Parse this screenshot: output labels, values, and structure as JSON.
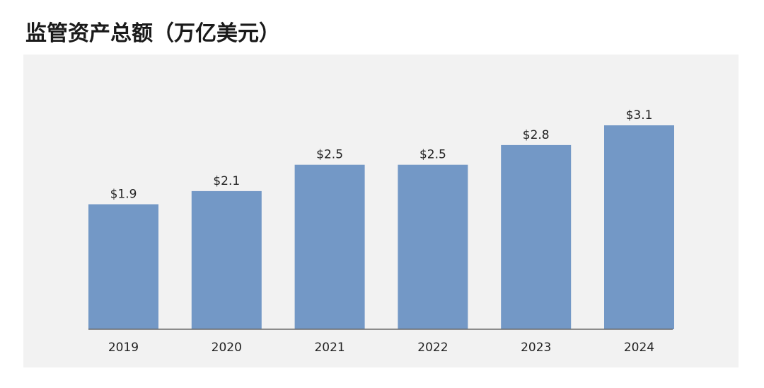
{
  "title": "监管资产总额（万亿美元）",
  "chart_data": {
    "type": "bar",
    "title": "监管资产总额（万亿美元）",
    "categories": [
      "2019",
      "2020",
      "2021",
      "2022",
      "2023",
      "2024"
    ],
    "values": [
      1.9,
      2.1,
      2.5,
      2.5,
      2.8,
      3.1
    ],
    "value_labels": [
      "$1.9",
      "$2.1",
      "$2.5",
      "$2.5",
      "$2.8",
      "$3.1"
    ],
    "xlabel": "",
    "ylabel": "",
    "ylim": [
      0,
      3.1
    ],
    "grid": false,
    "legend": "none",
    "bar_color": "#7398c6",
    "background_color": "#f2f2f2"
  }
}
